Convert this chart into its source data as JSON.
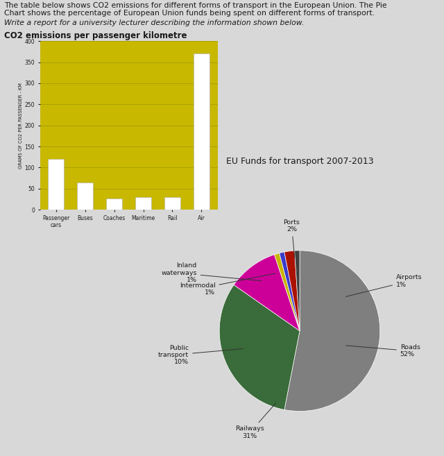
{
  "header_line1": "The table below shows CO2 emissions for different forms of transport in the European Union. The Pie",
  "header_line2": "Chart shows the percentage of European Union funds being spent on different forms of transport.",
  "subheader_text": "Write a report for a university lecturer describing the information shown below.",
  "bar_title": "CO2 emissions per passenger kilometre",
  "bar_ylabel": "GRAMS OF CO2 PER PASSENGER - KM",
  "bar_categories": [
    "Passenger\ncars",
    "Buses",
    "Coaches",
    "Maritime",
    "Rail",
    "Air"
  ],
  "bar_values": [
    120,
    65,
    27,
    30,
    30,
    370
  ],
  "bar_bg_color": "#c8b800",
  "bar_ylim": [
    0,
    400
  ],
  "bar_yticks": [
    0,
    50,
    100,
    150,
    200,
    250,
    300,
    350,
    400
  ],
  "pie_title": "EU Funds for transport 2007-2013",
  "pie_labels": [
    "Roads",
    "Railways",
    "Public transport",
    "Inland waterways",
    "Intermodal",
    "Ports",
    "Airports"
  ],
  "pie_pcts": [
    "52%",
    "31%",
    "10%",
    "1%",
    "1%",
    "2%",
    "1%"
  ],
  "pie_values": [
    52,
    31,
    10,
    1,
    1,
    2,
    1
  ],
  "pie_colors": [
    "#7f7f7f",
    "#3a6b3a",
    "#cc0099",
    "#c8b400",
    "#3b3bcc",
    "#aa1100",
    "#404040"
  ],
  "background_color": "#d8d8d8",
  "font_color": "#1a1a1a"
}
